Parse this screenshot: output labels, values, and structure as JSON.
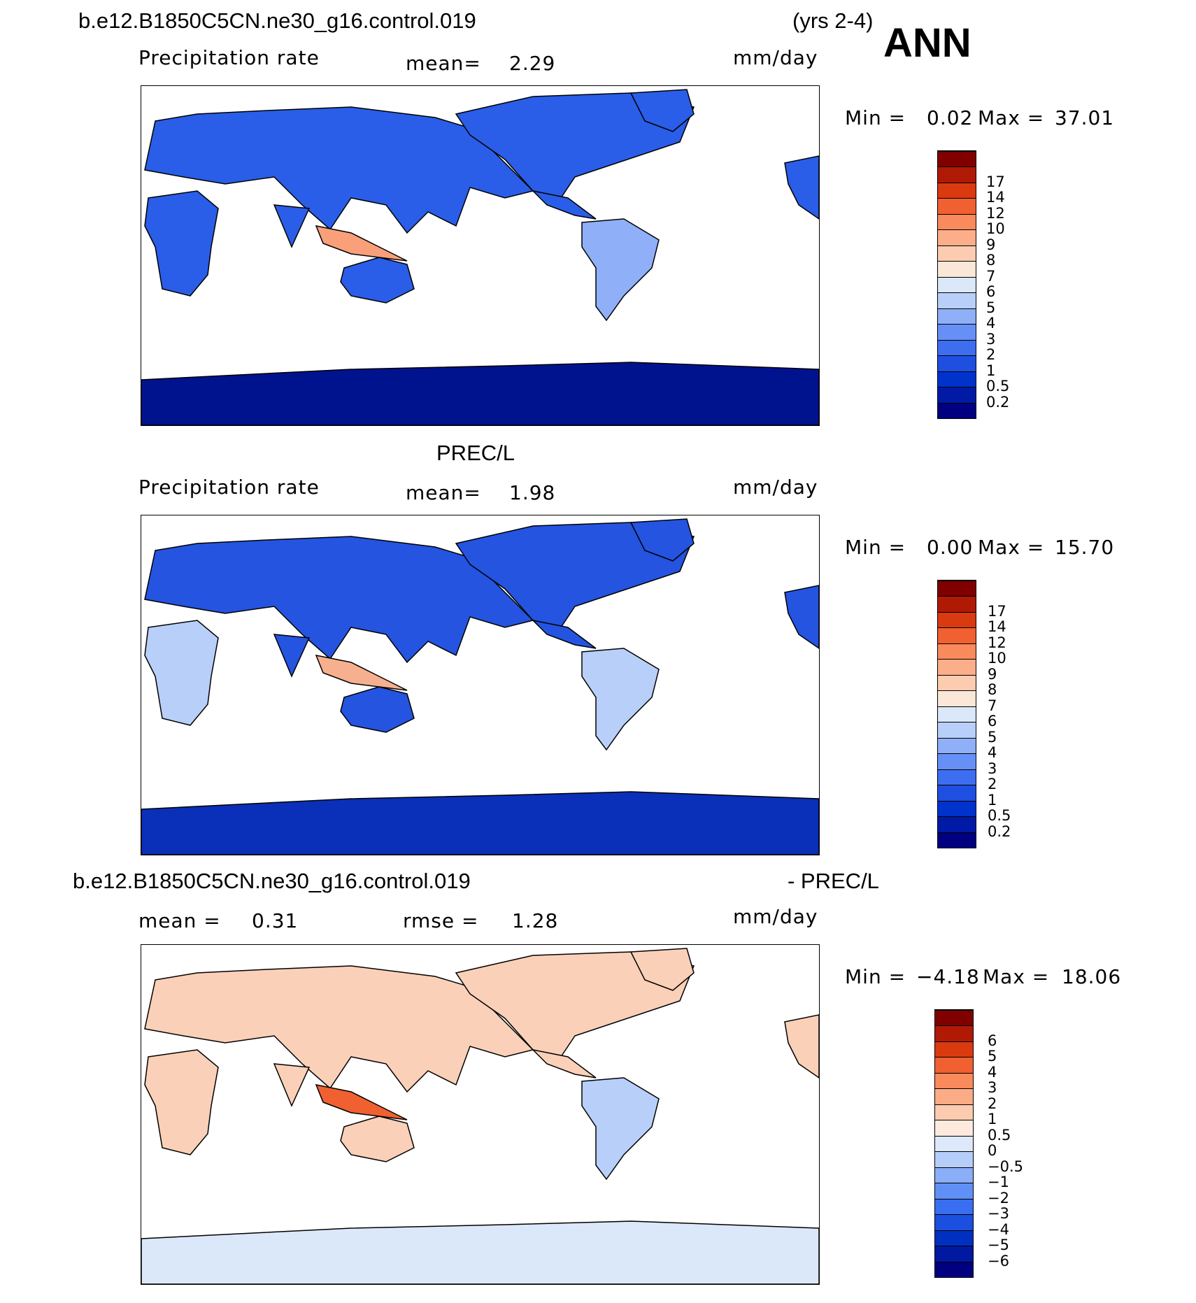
{
  "header": {
    "case_name": "b.e12.B1850C5CN.ne30_g16.control.019",
    "years": "(yrs 2-4)",
    "season": "ANN"
  },
  "panels": [
    {
      "id": "model",
      "title": "",
      "left_label": "Precipitation rate",
      "mean_label": "mean=",
      "mean_value": "2.29",
      "units": "mm/day",
      "min_label": "Min =",
      "min_value": "0.02",
      "max_label": "Max =",
      "max_value": "37.01",
      "colorbar_colors": [
        "#000080",
        "#001aa6",
        "#0033cc",
        "#1f4fe0",
        "#3d6ef0",
        "#6690f5",
        "#8fb0f8",
        "#b8cff9",
        "#dbe8fa",
        "#fbe7d8",
        "#fcccb0",
        "#fcae8a",
        "#f98a5c",
        "#f06030",
        "#d93a10",
        "#b01a05",
        "#800000"
      ],
      "colorbar_ticks": [
        "0.2",
        "0.5",
        "1",
        "2",
        "3",
        "4",
        "5",
        "6",
        "7",
        "8",
        "9",
        "10",
        "12",
        "14",
        "17"
      ]
    },
    {
      "id": "obs",
      "title": "PREC/L",
      "left_label": "Precipitation rate",
      "mean_label": "mean=",
      "mean_value": "1.98",
      "units": "mm/day",
      "min_label": "Min =",
      "min_value": "0.00",
      "max_label": "Max =",
      "max_value": "15.70",
      "colorbar_colors": [
        "#000080",
        "#001aa6",
        "#0033cc",
        "#1f4fe0",
        "#3d6ef0",
        "#6690f5",
        "#8fb0f8",
        "#b8cff9",
        "#dbe8fa",
        "#fbe7d8",
        "#fcccb0",
        "#fcae8a",
        "#f98a5c",
        "#f06030",
        "#d93a10",
        "#b01a05",
        "#800000"
      ],
      "colorbar_ticks": [
        "0.2",
        "0.5",
        "1",
        "2",
        "3",
        "4",
        "5",
        "6",
        "7",
        "8",
        "9",
        "10",
        "12",
        "14",
        "17"
      ]
    },
    {
      "id": "diff",
      "title_left": "b.e12.B1850C5CN.ne30_g16.control.019",
      "title_right": "- PREC/L",
      "mean_label": "mean =",
      "mean_value": "0.31",
      "rmse_label": "rmse =",
      "rmse_value": "1.28",
      "units": "mm/day",
      "min_label": "Min =",
      "min_value": "−4.18",
      "max_label": "Max =",
      "max_value": "18.06",
      "colorbar_colors": [
        "#000080",
        "#0019a0",
        "#0030c0",
        "#1a4fe0",
        "#3a6ef0",
        "#6090f5",
        "#8aaef8",
        "#b5cdf9",
        "#dde9fb",
        "#fdeadd",
        "#fccbb0",
        "#fbab85",
        "#f98a5c",
        "#f06030",
        "#d93a10",
        "#b01a05",
        "#800000"
      ],
      "colorbar_ticks": [
        "−6",
        "−5",
        "−4",
        "−3",
        "−2",
        "−1",
        "−0.5",
        "0",
        "0.5",
        "1",
        "2",
        "3",
        "4",
        "5",
        "6"
      ]
    }
  ],
  "map_colors": {
    "land_model": "#2a5ee8",
    "land_model_dark": "#0a2fb8",
    "land_model_light": "#8fb0f8",
    "land_obs": "#2454e0",
    "land_obs_light": "#b8cff9",
    "diff_pos": "#fbd0b8",
    "diff_pos_strong": "#f06030",
    "diff_neg": "#b8cff9",
    "antarctica_model": "#00138f",
    "antarctica_obs": "#0a2fb8",
    "antarctica_diff": "#dbe8fa"
  }
}
